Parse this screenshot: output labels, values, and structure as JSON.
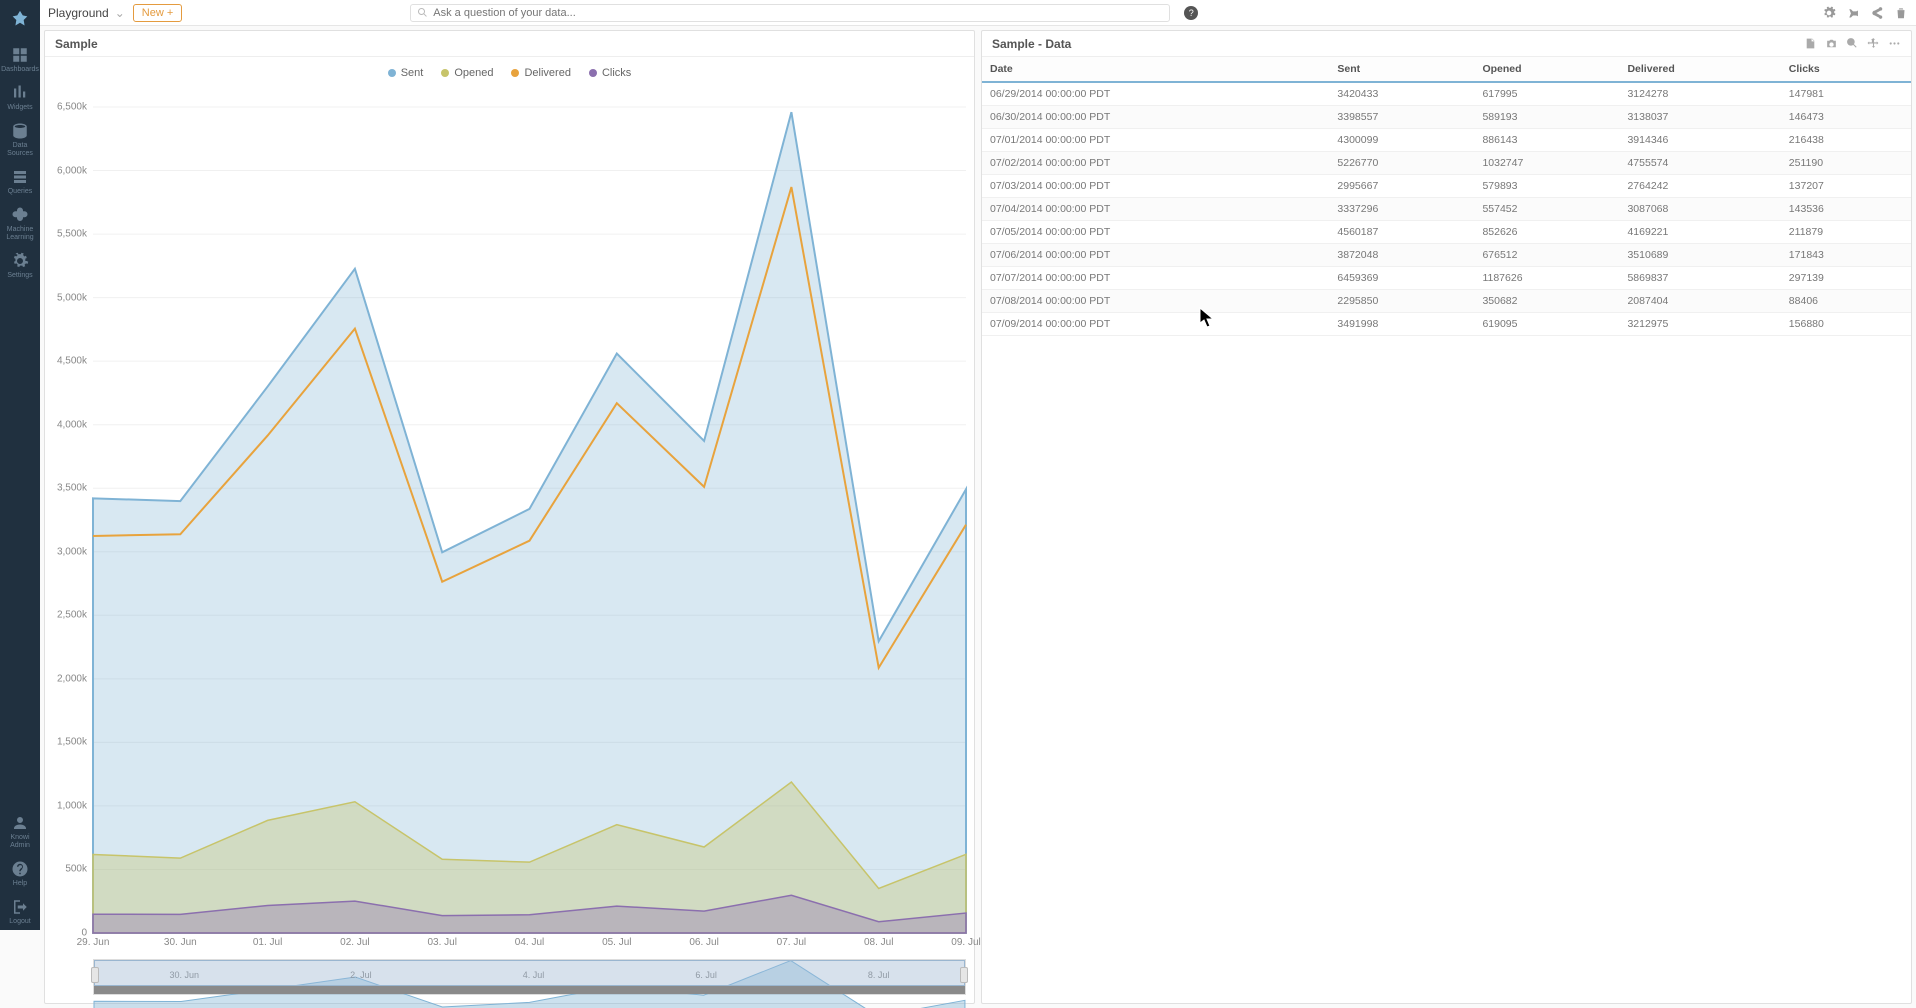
{
  "sidebar": {
    "items": [
      {
        "label": "Dashboards"
      },
      {
        "label": "Widgets"
      },
      {
        "label": "Data Sources"
      },
      {
        "label": "Queries"
      },
      {
        "label": "Machine Learning"
      },
      {
        "label": "Settings"
      }
    ],
    "footer": [
      {
        "label": "Knowi Admin"
      },
      {
        "label": "Help"
      },
      {
        "label": "Logout"
      }
    ]
  },
  "topbar": {
    "breadcrumb": "Playground",
    "new_label": "New +",
    "search_placeholder": "Ask a question of your data..."
  },
  "chart": {
    "title": "Sample",
    "type": "area",
    "series": [
      {
        "name": "Sent",
        "color": "#7fb3d5",
        "fill": "rgba(127,179,213,0.30)"
      },
      {
        "name": "Opened",
        "color": "#c7c46a",
        "fill": "rgba(199,196,106,0.35)"
      },
      {
        "name": "Delivered",
        "color": "#e8a33d",
        "fill": "rgba(232,163,61,0.00)"
      },
      {
        "name": "Clicks",
        "color": "#8b6fae",
        "fill": "rgba(139,111,174,0.35)"
      }
    ],
    "x_labels": [
      "29. Jun",
      "30. Jun",
      "01. Jul",
      "02. Jul",
      "03. Jul",
      "04. Jul",
      "05. Jul",
      "06. Jul",
      "07. Jul",
      "08. Jul",
      "09. Jul"
    ],
    "nav_labels": [
      "30. Jun",
      "2. Jul",
      "4. Jul",
      "6. Jul",
      "8. Jul"
    ],
    "y_max": 6500000,
    "y_ticks": [
      0,
      500000,
      1000000,
      1500000,
      2000000,
      2500000,
      3000000,
      3500000,
      4000000,
      4500000,
      5000000,
      5500000,
      6000000,
      6500000
    ],
    "y_tick_labels": [
      "0",
      "500k",
      "1,000k",
      "1,500k",
      "2,000k",
      "2,500k",
      "3,000k",
      "3,500k",
      "4,000k",
      "4,500k",
      "5,000k",
      "5,500k",
      "6,000k",
      "6,500k"
    ],
    "grid_color": "#f0f0f0",
    "background_color": "#ffffff"
  },
  "table": {
    "title": "Sample - Data",
    "columns": [
      "Date",
      "Sent",
      "Opened",
      "Delivered",
      "Clicks"
    ],
    "rows": [
      [
        "06/29/2014 00:00:00 PDT",
        3420433,
        617995,
        3124278,
        147981
      ],
      [
        "06/30/2014 00:00:00 PDT",
        3398557,
        589193,
        3138037,
        146473
      ],
      [
        "07/01/2014 00:00:00 PDT",
        4300099,
        886143,
        3914346,
        216438
      ],
      [
        "07/02/2014 00:00:00 PDT",
        5226770,
        1032747,
        4755574,
        251190
      ],
      [
        "07/03/2014 00:00:00 PDT",
        2995667,
        579893,
        2764242,
        137207
      ],
      [
        "07/04/2014 00:00:00 PDT",
        3337296,
        557452,
        3087068,
        143536
      ],
      [
        "07/05/2014 00:00:00 PDT",
        4560187,
        852626,
        4169221,
        211879
      ],
      [
        "07/06/2014 00:00:00 PDT",
        3872048,
        676512,
        3510689,
        171843
      ],
      [
        "07/07/2014 00:00:00 PDT",
        6459369,
        1187626,
        5869837,
        297139
      ],
      [
        "07/08/2014 00:00:00 PDT",
        2295850,
        350682,
        2087404,
        88406
      ],
      [
        "07/09/2014 00:00:00 PDT",
        3491998,
        619095,
        3212975,
        156880
      ]
    ]
  }
}
